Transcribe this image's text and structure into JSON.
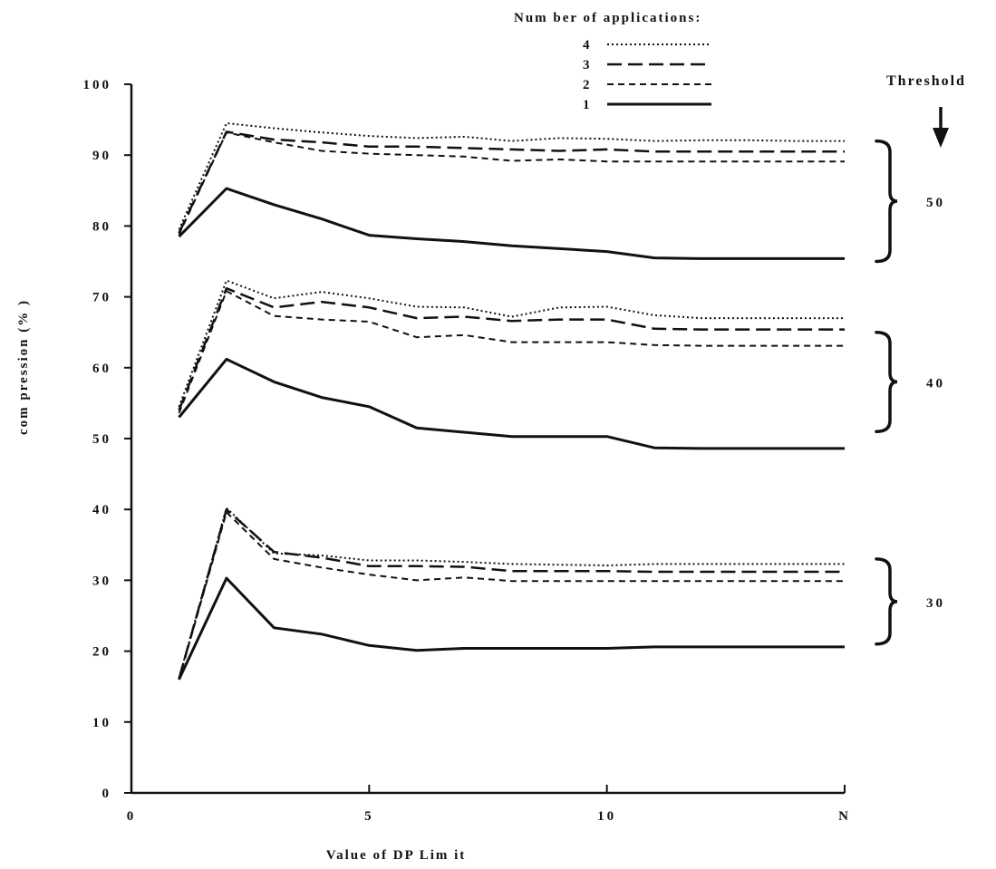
{
  "chart_data": {
    "type": "line",
    "title": "",
    "xlabel": "Value of DP Lim it",
    "ylabel": "com pression (% )",
    "xlim": [
      0,
      15
    ],
    "ylim": [
      0,
      100
    ],
    "x_ticks": [
      {
        "value": 0,
        "label": "0"
      },
      {
        "value": 5,
        "label": "5"
      },
      {
        "value": 10,
        "label": "10"
      },
      {
        "value": 15,
        "label": "N"
      }
    ],
    "y_ticks": [
      {
        "value": 0,
        "label": "0"
      },
      {
        "value": 10,
        "label": "10"
      },
      {
        "value": 20,
        "label": "20"
      },
      {
        "value": 30,
        "label": "30"
      },
      {
        "value": 40,
        "label": "40"
      },
      {
        "value": 50,
        "label": "50"
      },
      {
        "value": 60,
        "label": "60"
      },
      {
        "value": 70,
        "label": "70"
      },
      {
        "value": 80,
        "label": "80"
      },
      {
        "value": 90,
        "label": "90"
      },
      {
        "value": 100,
        "label": "100"
      }
    ],
    "legend": {
      "title": "Num ber of applications:",
      "placement": "top-right",
      "entries": [
        {
          "label": "4",
          "style": "dotted"
        },
        {
          "label": "3",
          "style": "long-dash"
        },
        {
          "label": "2",
          "style": "short-dash"
        },
        {
          "label": "1",
          "style": "solid"
        }
      ]
    },
    "threshold_header": "Threshold",
    "x": [
      1,
      2,
      3,
      4,
      5,
      6,
      7,
      8,
      9,
      10,
      11,
      12,
      13,
      14,
      15
    ],
    "groups": [
      {
        "threshold": "50",
        "range": [
          75,
          92
        ],
        "series": [
          {
            "name": "4",
            "style": "dotted",
            "values": [
              79.5,
              94.5,
              93.8,
              93.2,
              92.7,
              92.4,
              92.6,
              92.0,
              92.4,
              92.3,
              92.0,
              92.1,
              92.1,
              92.0,
              92.0
            ]
          },
          {
            "name": "3",
            "style": "long-dash",
            "values": [
              79.0,
              93.3,
              92.2,
              91.8,
              91.2,
              91.2,
              91.0,
              90.8,
              90.6,
              90.8,
              90.5,
              90.5,
              90.5,
              90.5,
              90.5
            ]
          },
          {
            "name": "2",
            "style": "short-dash",
            "values": [
              78.8,
              93.2,
              91.8,
              90.6,
              90.2,
              90.0,
              89.8,
              89.2,
              89.4,
              89.1,
              89.1,
              89.1,
              89.1,
              89.1,
              89.1
            ]
          },
          {
            "name": "1",
            "style": "solid",
            "values": [
              78.5,
              85.3,
              83.0,
              81.0,
              78.7,
              78.2,
              77.8,
              77.2,
              76.8,
              76.4,
              75.5,
              75.4,
              75.4,
              75.4,
              75.4
            ]
          }
        ]
      },
      {
        "threshold": "40",
        "range": [
          51,
          65
        ],
        "series": [
          {
            "name": "4",
            "style": "dotted",
            "values": [
              54.5,
              72.3,
              69.8,
              70.7,
              69.8,
              68.6,
              68.5,
              67.2,
              68.5,
              68.6,
              67.4,
              67.0,
              67.0,
              67.0,
              67.0
            ]
          },
          {
            "name": "3",
            "style": "long-dash",
            "values": [
              54.0,
              71.2,
              68.5,
              69.3,
              68.5,
              67.0,
              67.2,
              66.6,
              66.8,
              66.8,
              65.5,
              65.4,
              65.4,
              65.4,
              65.4
            ]
          },
          {
            "name": "2",
            "style": "short-dash",
            "values": [
              53.6,
              70.8,
              67.3,
              66.8,
              66.5,
              64.3,
              64.6,
              63.6,
              63.6,
              63.6,
              63.2,
              63.1,
              63.1,
              63.1,
              63.1
            ]
          },
          {
            "name": "1",
            "style": "solid",
            "values": [
              53.0,
              61.2,
              58.0,
              55.8,
              54.5,
              51.5,
              50.9,
              50.3,
              50.3,
              50.3,
              48.7,
              48.6,
              48.6,
              48.6,
              48.6
            ]
          }
        ]
      },
      {
        "threshold": "30",
        "range": [
          21,
          33
        ],
        "series": [
          {
            "name": "4",
            "style": "dotted",
            "values": [
              16.2,
              40.2,
              33.8,
              33.5,
              32.8,
              32.8,
              32.6,
              32.3,
              32.2,
              32.1,
              32.3,
              32.3,
              32.3,
              32.3,
              32.3
            ]
          },
          {
            "name": "3",
            "style": "long-dash",
            "values": [
              16.1,
              40.0,
              34.0,
              33.2,
              32.0,
              32.0,
              31.9,
              31.3,
              31.3,
              31.3,
              31.2,
              31.2,
              31.2,
              31.2,
              31.2
            ]
          },
          {
            "name": "2",
            "style": "short-dash",
            "values": [
              16.0,
              39.6,
              33.0,
              31.8,
              30.8,
              30.0,
              30.4,
              29.9,
              29.9,
              29.9,
              29.9,
              29.9,
              29.9,
              29.9,
              29.9
            ]
          },
          {
            "name": "1",
            "style": "solid",
            "values": [
              16.0,
              30.3,
              23.3,
              22.4,
              20.8,
              20.1,
              20.4,
              20.4,
              20.4,
              20.4,
              20.6,
              20.6,
              20.6,
              20.6,
              20.6
            ]
          }
        ]
      }
    ]
  }
}
